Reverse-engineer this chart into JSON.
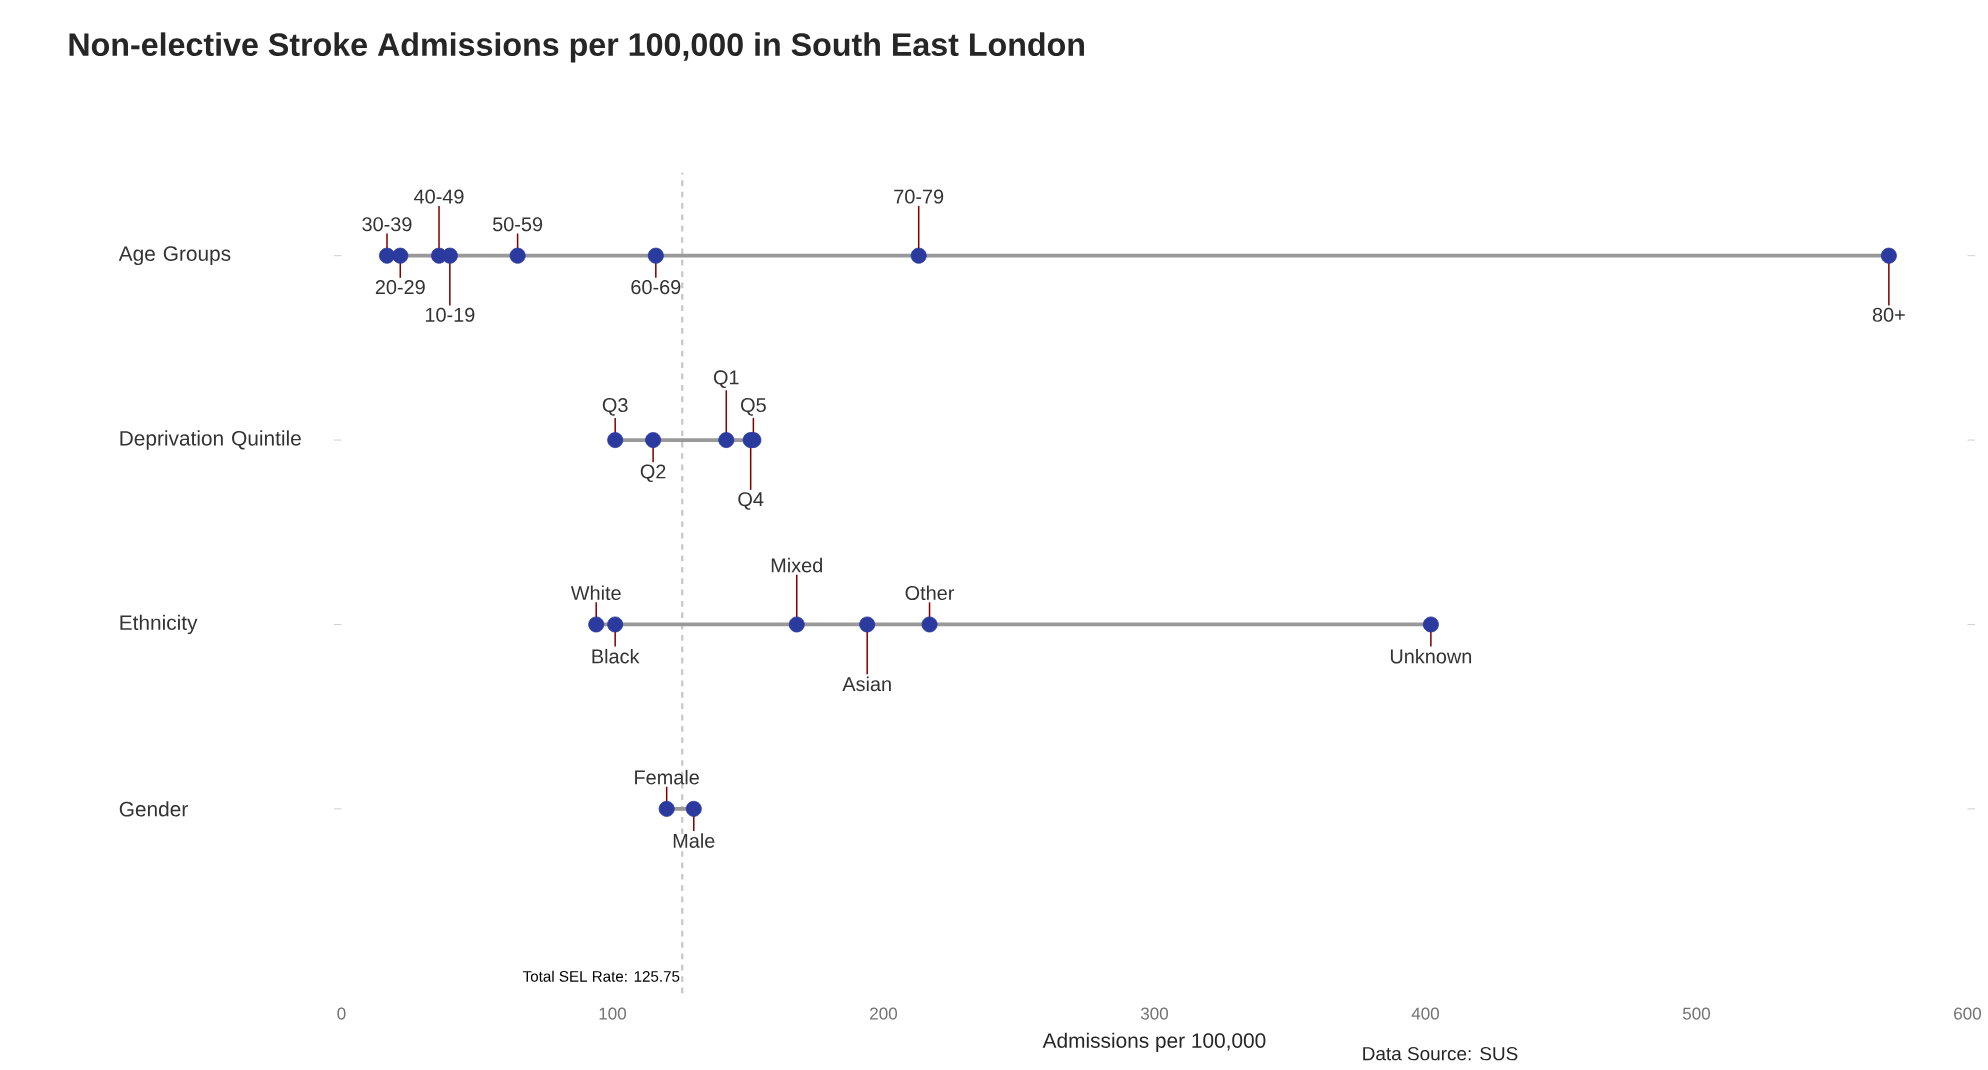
{
  "chart_data": {
    "type": "scatter",
    "orientation": "horizontal",
    "title": "Non-elective Stroke Admissions per 100,000 in South East London",
    "xlabel": "Admissions per 100,000",
    "categories": [
      "Age Groups",
      "Deprivation Quintile",
      "Ethnicity",
      "Gender"
    ],
    "series": [
      {
        "color": "#2b3a9e",
        "values": [
          16.8,
          null,
          null,
          null
        ],
        "value_labels": [
          "30-39",
          null,
          null,
          null
        ]
      },
      {
        "color": "#2b3a9e",
        "values": [
          21.7,
          null,
          null,
          null
        ],
        "value_labels": [
          "20-29",
          null,
          null,
          null
        ]
      },
      {
        "color": "#2b3a9e",
        "values": [
          36,
          null,
          null,
          null
        ],
        "value_labels": [
          "40-49",
          null,
          null,
          null
        ]
      },
      {
        "color": "#2b3a9e",
        "values": [
          40,
          null,
          null,
          null
        ],
        "value_labels": [
          "10-19",
          null,
          null,
          null
        ]
      },
      {
        "color": "#2b3a9e",
        "values": [
          65,
          null,
          null,
          null
        ],
        "value_labels": [
          "50-59",
          null,
          null,
          null
        ]
      },
      {
        "color": "#2b3a9e",
        "values": [
          116,
          null,
          null,
          null
        ],
        "value_labels": [
          "60-69",
          null,
          null,
          null
        ]
      },
      {
        "color": "#2b3a9e",
        "values": [
          213,
          null,
          null,
          null
        ],
        "value_labels": [
          "70-79",
          null,
          null,
          null
        ]
      },
      {
        "color": "#2b3a9e",
        "values": [
          571,
          null,
          null,
          null
        ],
        "value_labels": [
          "80+",
          null,
          null,
          null
        ]
      },
      {
        "color": "#2b3a9e",
        "values": [
          null,
          101,
          null,
          null
        ],
        "value_labels": [
          null,
          "Q3",
          null,
          null
        ]
      },
      {
        "color": "#2b3a9e",
        "values": [
          null,
          115,
          null,
          null
        ],
        "value_labels": [
          null,
          "Q2",
          null,
          null
        ]
      },
      {
        "color": "#2b3a9e",
        "values": [
          null,
          142,
          null,
          null
        ],
        "value_labels": [
          null,
          "Q1",
          null,
          null
        ]
      },
      {
        "color": "#2b3a9e",
        "values": [
          null,
          151,
          null,
          null
        ],
        "value_labels": [
          null,
          "Q4",
          null,
          null
        ]
      },
      {
        "color": "#2b3a9e",
        "values": [
          null,
          152,
          null,
          null
        ],
        "value_labels": [
          null,
          "Q5",
          null,
          null
        ]
      },
      {
        "color": "#2b3a9e",
        "values": [
          null,
          null,
          94,
          null
        ],
        "value_labels": [
          null,
          null,
          "White",
          null
        ]
      },
      {
        "color": "#2b3a9e",
        "values": [
          null,
          null,
          101,
          null
        ],
        "value_labels": [
          null,
          null,
          "Black",
          null
        ]
      },
      {
        "color": "#2b3a9e",
        "values": [
          null,
          null,
          168,
          null
        ],
        "value_labels": [
          null,
          null,
          "Mixed",
          null
        ]
      },
      {
        "color": "#2b3a9e",
        "values": [
          null,
          null,
          194,
          null
        ],
        "value_labels": [
          null,
          null,
          "Asian",
          null
        ]
      },
      {
        "color": "#2b3a9e",
        "values": [
          null,
          null,
          217,
          null
        ],
        "value_labels": [
          null,
          null,
          "Other",
          null
        ]
      },
      {
        "color": "#2b3a9e",
        "values": [
          null,
          null,
          402,
          null
        ],
        "value_labels": [
          null,
          null,
          "Unknown",
          null
        ]
      },
      {
        "color": "#2b3a9e",
        "values": [
          null,
          null,
          null,
          120
        ],
        "value_labels": [
          null,
          null,
          null,
          "Female"
        ]
      },
      {
        "color": "#2b3a9e",
        "values": [
          null,
          null,
          null,
          130
        ],
        "value_labels": [
          null,
          null,
          null,
          "Male"
        ]
      }
    ],
    "xlim": [
      0,
      600
    ],
    "xticks": [
      0,
      100,
      200,
      300,
      400,
      500,
      600
    ],
    "marker": "circle",
    "ref_lines": [
      {
        "axis": "x",
        "value": 125.75,
        "label": "Total SEL Rate: 125.75",
        "color": "#c8c8c8",
        "line_style": "dashed"
      }
    ],
    "annotations": [
      "Data Source: SUS"
    ]
  }
}
